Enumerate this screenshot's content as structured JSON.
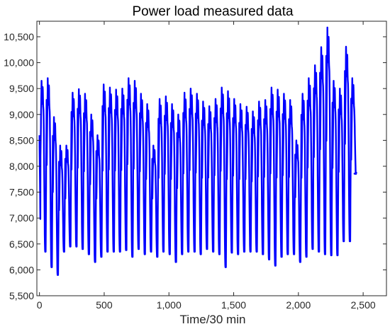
{
  "chart_data": {
    "type": "line",
    "title": "Power load measured data",
    "xlabel": "Time/30 min",
    "ylabel": "",
    "xlim": [
      -20,
      2680
    ],
    "ylim": [
      5500,
      10800
    ],
    "xticks": [
      0,
      500,
      1000,
      1500,
      2000,
      2500
    ],
    "xtick_labels": [
      "0",
      "500",
      "1,000",
      "1,500",
      "2,000",
      "2,500"
    ],
    "yticks": [
      5500,
      6000,
      6500,
      7000,
      7500,
      8000,
      8500,
      9000,
      9500,
      10000,
      10500
    ],
    "ytick_labels": [
      "5,500",
      "6,000",
      "6,500",
      "7,000",
      "7,500",
      "8,000",
      "8,500",
      "9,000",
      "9,500",
      "10,000",
      "10,500"
    ],
    "grid": false,
    "line_color": "#0000ff",
    "cycle_length": 48,
    "series": [
      {
        "daily_peaks": [
          9650,
          9700,
          8950,
          8400,
          8400,
          9420,
          9490,
          9400,
          9000,
          8600,
          9580,
          9520,
          9480,
          9500,
          9700,
          9650,
          9400,
          9200,
          8400,
          9300,
          9350,
          9200,
          9000,
          9420,
          9500,
          9400,
          9250,
          9160,
          9300,
          9520,
          9450,
          9300,
          9200,
          9150,
          9060,
          9250,
          9280,
          9520,
          9480,
          9400,
          9280,
          8500,
          9400,
          9700,
          9950,
          10300,
          10680,
          9650,
          9500,
          10310,
          9700
        ],
        "daily_troughs": [
          6750,
          6350,
          6050,
          5900,
          6350,
          6450,
          6450,
          6400,
          6300,
          6150,
          6250,
          6350,
          6350,
          6350,
          6380,
          6250,
          6400,
          6300,
          6350,
          6250,
          6350,
          6300,
          6150,
          6300,
          6350,
          6350,
          6300,
          6400,
          6350,
          6300,
          6050,
          6330,
          6300,
          6350,
          6350,
          6350,
          6300,
          6200,
          6080,
          6250,
          6300,
          6300,
          6150,
          6250,
          6400,
          6350,
          6300,
          6280,
          6280,
          6550,
          6550
        ],
        "start_value": 8600,
        "end_value": 7850
      }
    ]
  }
}
